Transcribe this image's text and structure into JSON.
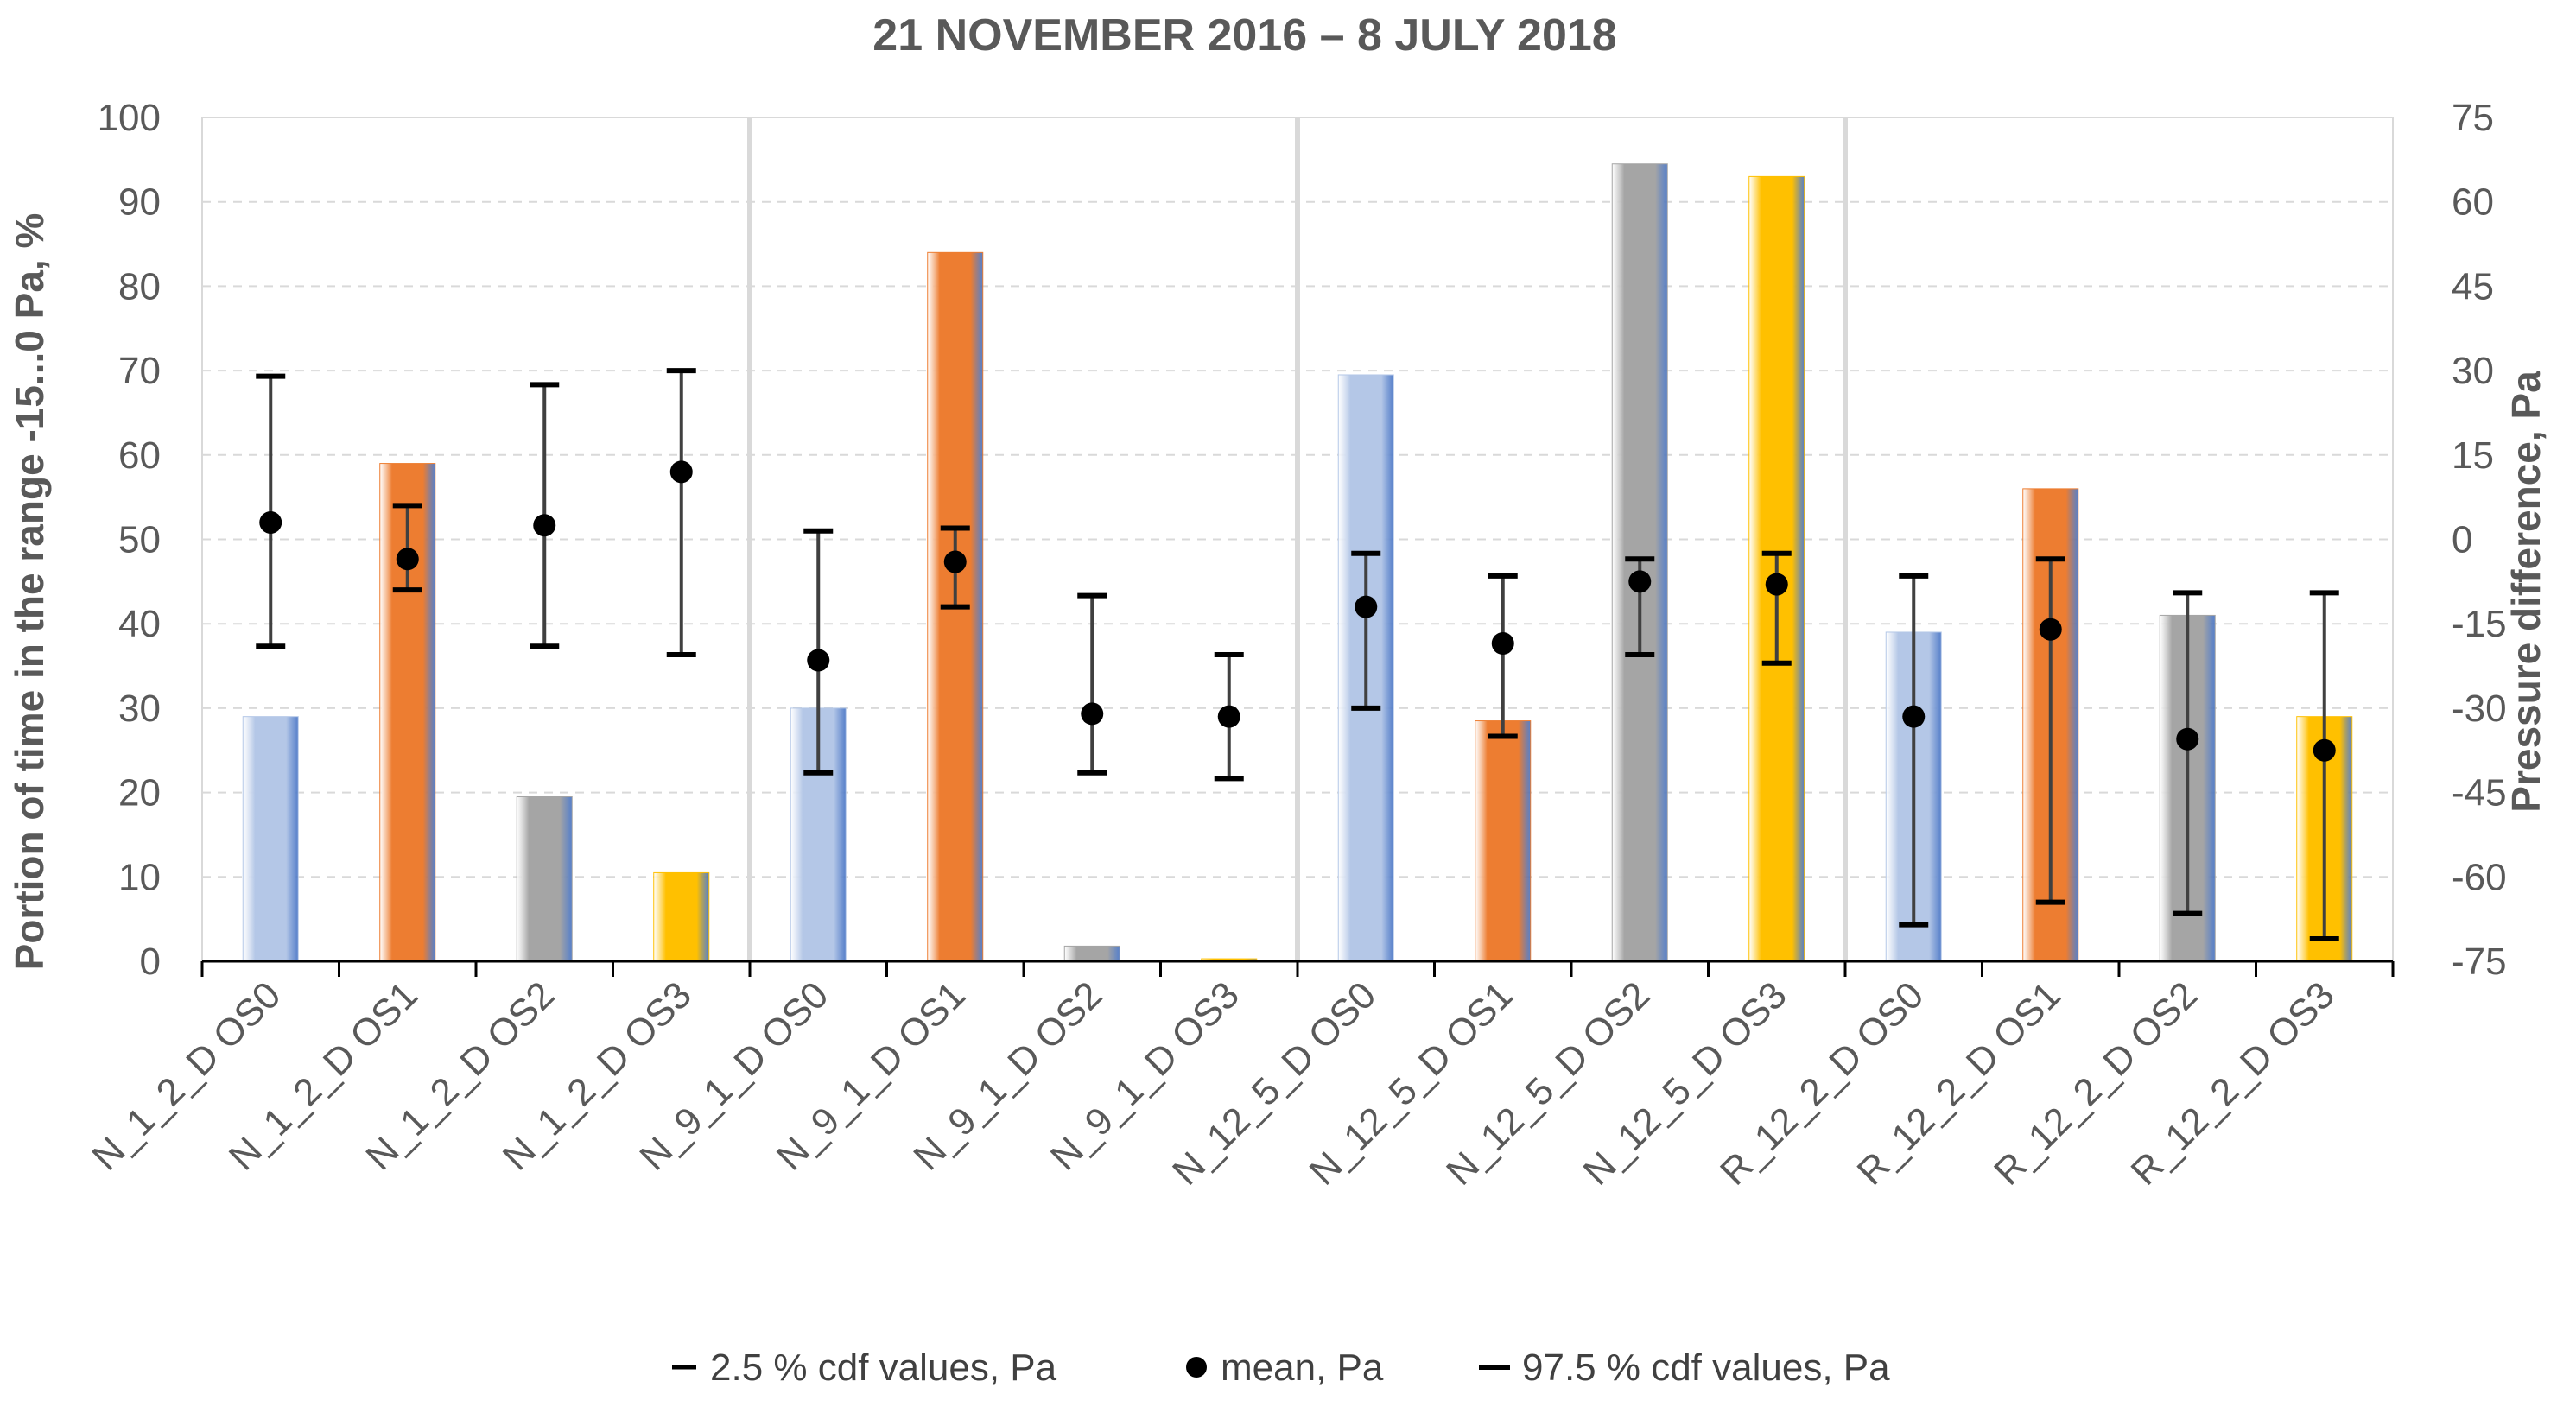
{
  "chart_data": {
    "type": "bar",
    "title": "21 NOVEMBER 2016 – 8 JULY 2018",
    "ylabel_left": "Portion of time in the range -15...0 Pa, %",
    "ylabel_right": "Pressure difference, Pa",
    "ylim_left": [
      0,
      100
    ],
    "ylim_right": [
      -75,
      75
    ],
    "yticks_left": [
      "0",
      "10",
      "20",
      "30",
      "40",
      "50",
      "60",
      "70",
      "80",
      "90",
      "100"
    ],
    "yticks_right": [
      "-75",
      "-60",
      "-45",
      "-30",
      "-15",
      "0",
      "15",
      "30",
      "45",
      "60",
      "75"
    ],
    "grid": true,
    "categories": [
      "N_1_2_D OS0",
      "N_1_2_D OS1",
      "N_1_2_D OS2",
      "N_1_2_D OS3",
      "N_9_1_D OS0",
      "N_9_1_D OS1",
      "N_9_1_D OS2",
      "N_9_1_D OS3",
      "N_12_5_D OS0",
      "N_12_5_D OS1",
      "N_12_5_D OS2",
      "N_12_5_D OS3",
      "R_12_2_D OS0",
      "R_12_2_D OS1",
      "R_12_2_D OS2",
      "R_12_2_D OS3"
    ],
    "bar_series": {
      "name": "Portion of time in the range -15...0 Pa, %",
      "values": [
        29,
        59,
        19.5,
        10.5,
        30,
        84,
        1.8,
        0.3,
        69.5,
        28.5,
        94.5,
        93,
        39,
        56,
        41,
        29
      ],
      "color_by_opening_state": {
        "OS0": "#B4C7E7",
        "OS1": "#ED7D31",
        "OS2": "#A5A5A5",
        "OS3": "#FFC000"
      }
    },
    "series": [
      {
        "name": "2.5 % cdf values, Pa",
        "values": [
          -19,
          -9,
          -19,
          -20.5,
          -41.5,
          -12,
          -41.5,
          -42.5,
          -30,
          -35,
          -20.5,
          -22,
          -68.5,
          -64.5,
          -66.5,
          -71
        ]
      },
      {
        "name": "mean, Pa",
        "values": [
          3,
          -3.5,
          2.5,
          12,
          -21.5,
          -4,
          -31,
          -31.5,
          -12,
          -18.5,
          -7.5,
          -8,
          -31.5,
          -16,
          -35.5,
          -37.5
        ]
      },
      {
        "name": "97.5 % cdf values, Pa",
        "values": [
          29,
          6,
          27.5,
          30,
          1.5,
          2,
          -10,
          -20.5,
          -2.5,
          -6.5,
          -3.5,
          -2.5,
          -6.5,
          -3.5,
          -9.5,
          -9.5
        ]
      }
    ],
    "group_separators_after_index": [
      3,
      7,
      11
    ],
    "legend_position": "bottom",
    "legend": [
      "2.5 % cdf values, Pa",
      "mean, Pa",
      "97.5 % cdf values, Pa"
    ]
  }
}
